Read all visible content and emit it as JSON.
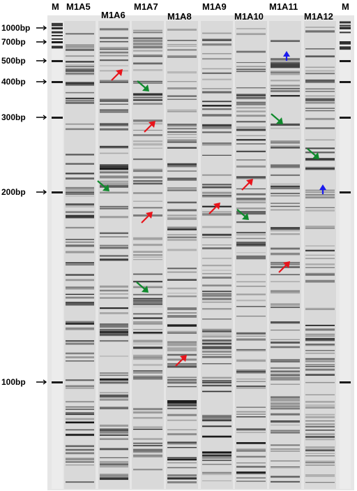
{
  "lanes": [
    {
      "label": "M",
      "kind": "marker"
    },
    {
      "label": "M1A5",
      "kind": "sample"
    },
    {
      "label": "M1A6",
      "kind": "sample"
    },
    {
      "label": "M1A7",
      "kind": "sample"
    },
    {
      "label": "M1A8",
      "kind": "sample"
    },
    {
      "label": "M1A9",
      "kind": "sample"
    },
    {
      "label": "M1A10",
      "kind": "sample"
    },
    {
      "label": "M1A11",
      "kind": "sample"
    },
    {
      "label": "M1A12",
      "kind": "sample"
    },
    {
      "label": "M",
      "kind": "marker"
    }
  ],
  "size_markers": [
    "1000bp",
    "700bp",
    "500bp",
    "400bp",
    "300bp",
    "200bp",
    "100bp"
  ],
  "arrow_colors": {
    "red": "#e8141b",
    "green": "#0f8a2c",
    "blue": "#1a1aee"
  },
  "arrows": [
    {
      "lane": "M1A6",
      "color": "red"
    },
    {
      "lane": "M1A6",
      "color": "green"
    },
    {
      "lane": "M1A7",
      "color": "green"
    },
    {
      "lane": "M1A7",
      "color": "red"
    },
    {
      "lane": "M1A7",
      "color": "red"
    },
    {
      "lane": "M1A7",
      "color": "green"
    },
    {
      "lane": "M1A8",
      "color": "red"
    },
    {
      "lane": "M1A9",
      "color": "red"
    },
    {
      "lane": "M1A10",
      "color": "red"
    },
    {
      "lane": "M1A10",
      "color": "green"
    },
    {
      "lane": "M1A11",
      "color": "blue"
    },
    {
      "lane": "M1A11",
      "color": "green"
    },
    {
      "lane": "M1A11",
      "color": "red"
    },
    {
      "lane": "M1A12",
      "color": "green"
    },
    {
      "lane": "M1A12",
      "color": "blue"
    }
  ],
  "gel_colors": {
    "background": "#e6e6e6",
    "band": "#141414"
  }
}
